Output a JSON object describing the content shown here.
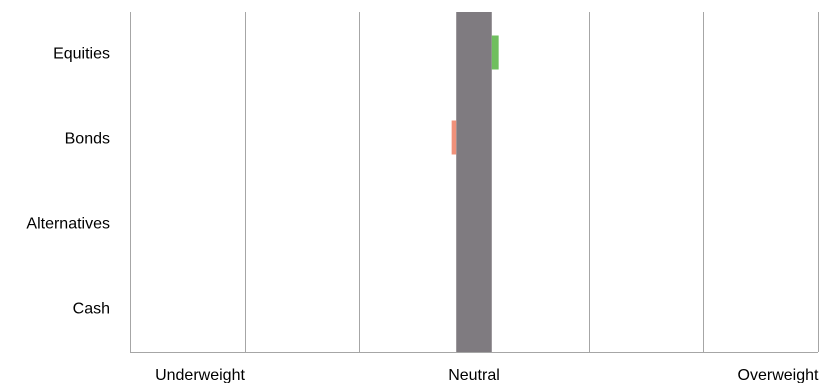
{
  "chart_data": {
    "type": "bar",
    "title": "",
    "xlabel": "",
    "ylabel": "",
    "categories": [
      "Equities",
      "Bonds",
      "Alternatives",
      "Cash"
    ],
    "position_labels": [
      "Underweight",
      "Neutral",
      "Overweight"
    ],
    "xlim": [
      -3,
      3
    ],
    "gridlines": [
      -3,
      -2,
      -1,
      0,
      1,
      2,
      3
    ],
    "neutral_band": {
      "center": 0,
      "color": "#7f7b80"
    },
    "series": [
      {
        "values": [
          0.06,
          -0.04,
          0,
          0
        ]
      }
    ],
    "positive_color": "#6fbf5e",
    "negative_color": "#f0917a",
    "grid_color": "#a6a6a6",
    "grid": true,
    "legend": "none"
  }
}
